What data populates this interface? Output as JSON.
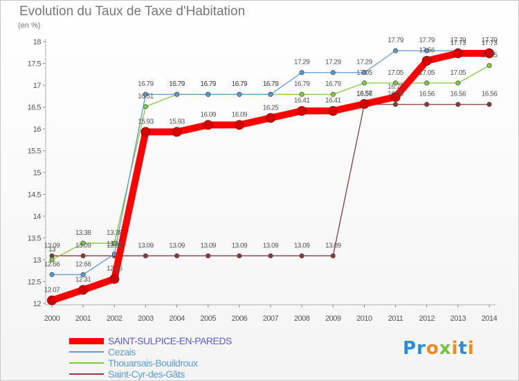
{
  "title": "Evolution du Taux de Taxe d'Habitation",
  "unit": "(en %)",
  "logo": {
    "text": "Proxiti"
  },
  "chart_data": {
    "type": "line",
    "title": "Evolution du Taux de Taxe d'Habitation",
    "ylabel": "(en %)",
    "xlabel": "",
    "x": [
      2000,
      2001,
      2002,
      2003,
      2004,
      2005,
      2006,
      2007,
      2008,
      2009,
      2010,
      2011,
      2012,
      2013,
      2014
    ],
    "ylim": [
      12,
      18
    ],
    "yticks": [
      12,
      12.5,
      13,
      13.5,
      14,
      14.5,
      15,
      15.5,
      16,
      16.5,
      17,
      17.5,
      18
    ],
    "grid": false,
    "legend_position": "bottom-left",
    "series": [
      {
        "name": "SAINT-SULPICE-EN-PAREDS",
        "color": "#ff0000",
        "values": [
          12.07,
          12.31,
          12.56,
          15.93,
          15.93,
          16.09,
          16.09,
          16.25,
          16.41,
          16.41,
          16.57,
          16.73,
          17.56,
          17.73,
          17.73
        ],
        "labels": [
          "12.07",
          "12.31",
          "12.56",
          "15.93",
          "15.93",
          "16.09",
          "16.09",
          "16.25",
          "16.41",
          "16.41",
          "16.57",
          "16.73",
          "17.56",
          "17.73",
          "17.73"
        ]
      },
      {
        "name": "Cezais",
        "color": "#5b9bd5",
        "values": [
          12.66,
          12.66,
          13.13,
          16.79,
          16.79,
          16.79,
          16.79,
          16.79,
          17.29,
          17.29,
          17.29,
          17.79,
          17.79,
          17.79,
          17.79
        ],
        "labels": [
          "12.66",
          "12.66",
          "13.13",
          "16.79",
          "16.79",
          "16.79",
          "16.79",
          "16.79",
          "17.29",
          "17.29",
          "17.29",
          "17.79",
          "17.79",
          "17.79",
          "17.79"
        ]
      },
      {
        "name": "Thouarsais-Bouildroux",
        "color": "#7ccd3a",
        "values": [
          13.0,
          13.38,
          13.38,
          16.51,
          16.79,
          16.79,
          16.79,
          16.79,
          16.79,
          16.79,
          17.05,
          17.05,
          17.05,
          17.05,
          17.45
        ],
        "labels": [
          "13",
          "13.38",
          "13.38",
          "16.51",
          "16.79",
          "16.79",
          "16.79",
          "16.79",
          "16.79",
          "16.79",
          "17.05",
          "17.05",
          "17.05",
          "17.05",
          "17.45"
        ]
      },
      {
        "name": "Saint-Cyr-des-Gâts",
        "color": "#8b3a3a",
        "values": [
          13.09,
          13.09,
          13.09,
          13.09,
          13.09,
          13.09,
          13.09,
          13.09,
          13.09,
          13.09,
          16.56,
          16.56,
          16.56,
          16.56,
          16.56
        ],
        "labels": [
          "13.09",
          "13.09",
          "13.09",
          "13.09",
          "13.09",
          "13.09",
          "13.09",
          "13.09",
          "13.09",
          "13.09",
          "16.56",
          "16.56",
          "16.56",
          "16.56",
          "16.56"
        ]
      }
    ]
  },
  "legend": [
    {
      "label": "SAINT-SULPICE-EN-PAREDS",
      "color": "#ff0000"
    },
    {
      "label": "Cezais",
      "color": "#5b9bd5"
    },
    {
      "label": "Thouarsais-Bouildroux",
      "color": "#7ccd3a"
    },
    {
      "label": "Saint-Cyr-des-Gâts",
      "color": "#8b3a3a"
    }
  ]
}
